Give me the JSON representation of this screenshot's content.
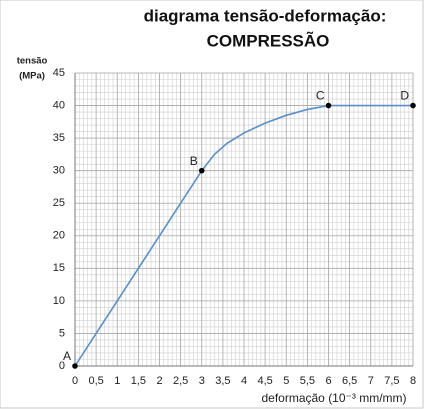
{
  "chart_data": {
    "type": "line",
    "title": "diagrama tensão-deformação:",
    "subtitle": "COMPRESSÃO",
    "ylabel": [
      "tensão",
      "(MPa)"
    ],
    "xlabel": "deformação (10⁻³ mm/mm)",
    "x": [
      0,
      0.5,
      1,
      1.5,
      2,
      2.5,
      3,
      3.3,
      3.6,
      4,
      4.5,
      5,
      5.5,
      6,
      7,
      8
    ],
    "series": [
      {
        "color": "#5b8fc9",
        "values": [
          0,
          5,
          10,
          15,
          20,
          25,
          30,
          32.5,
          34.2,
          35.8,
          37.3,
          38.5,
          39.4,
          40,
          40,
          40
        ]
      }
    ],
    "points": [
      {
        "label": "A",
        "x": 0,
        "y": 0
      },
      {
        "label": "B",
        "x": 3,
        "y": 30
      },
      {
        "label": "C",
        "x": 6,
        "y": 40
      },
      {
        "label": "D",
        "x": 8,
        "y": 40
      }
    ],
    "point_color": "#000000",
    "xlim": [
      0,
      8
    ],
    "ylim": [
      0,
      45
    ],
    "xticks": [
      0,
      {
        "value": 0.5,
        "label": "0,5"
      },
      1,
      {
        "value": 1.5,
        "label": "1,5"
      },
      2,
      {
        "value": 2.5,
        "label": "2,5"
      },
      3,
      {
        "value": 3.5,
        "label": "3,5"
      },
      4,
      {
        "value": 4.5,
        "label": "4,5"
      },
      5,
      {
        "value": 5.5,
        "label": "5,5"
      },
      6,
      {
        "value": 6.5,
        "label": "6,5"
      },
      7,
      {
        "value": 7.5,
        "label": "7,5"
      },
      8
    ],
    "yticks": [
      0,
      5,
      10,
      15,
      20,
      25,
      30,
      35,
      40,
      45
    ],
    "grid": true
  }
}
